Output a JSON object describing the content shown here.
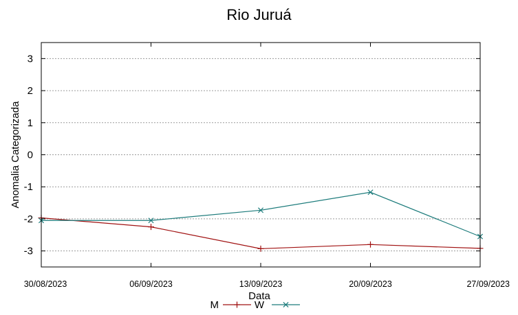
{
  "chart_data": {
    "type": "line",
    "title": "Rio Juruá",
    "xlabel": "Data",
    "ylabel": "Anomalia Categorizada",
    "x": [
      "30/08/2023",
      "06/09/2023",
      "13/09/2023",
      "20/09/2023",
      "27/09/2023"
    ],
    "yticks": [
      3,
      2,
      1,
      0,
      -1,
      -2,
      -3
    ],
    "ylim": [
      -3.5,
      3.5
    ],
    "grid": true,
    "legend_position": "bottom-center",
    "series": [
      {
        "name": "M",
        "color": "#a01010",
        "marker": "plus",
        "values": [
          -1.97,
          -2.25,
          -2.93,
          -2.8,
          -2.92
        ]
      },
      {
        "name": "W",
        "color": "#1a7a7a",
        "marker": "x",
        "values": [
          -2.05,
          -2.05,
          -1.73,
          -1.17,
          -2.55
        ]
      }
    ]
  }
}
